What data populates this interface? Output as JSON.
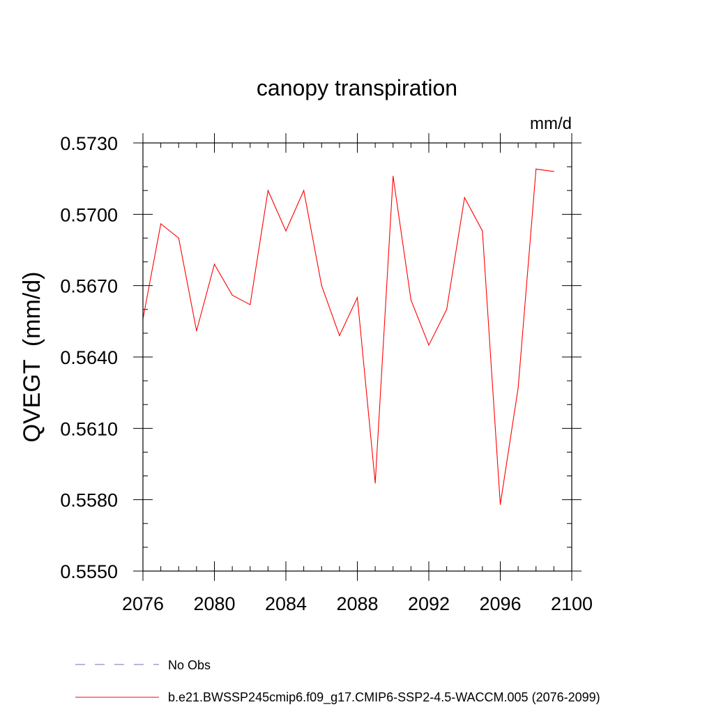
{
  "chart_data": {
    "type": "line",
    "title": "canopy transpiration",
    "units_label": "mm/d",
    "ylabel": "QVEGT  (mm/d)",
    "xlabel": "",
    "xlim": [
      2076,
      2100
    ],
    "ylim": [
      0.555,
      0.573
    ],
    "x_ticks": [
      2076,
      2080,
      2084,
      2088,
      2092,
      2096,
      2100
    ],
    "x_tick_labels": [
      "2076",
      "2080",
      "2084",
      "2088",
      "2092",
      "2096",
      "2100"
    ],
    "x_minor_step": 1,
    "y_ticks": [
      0.555,
      0.558,
      0.561,
      0.564,
      0.567,
      0.57,
      0.573
    ],
    "y_tick_labels": [
      "0.5550",
      "0.5580",
      "0.5610",
      "0.5640",
      "0.5670",
      "0.5700",
      "0.5730"
    ],
    "y_minor_step": 0.001,
    "grid": false,
    "legend_position": "bottom",
    "series": [
      {
        "name": "b.e21.BWSSP245cmip6.f09_g17.CMIP6-SSP2-4.5-WACCM.005 (2076-2099)",
        "color": "#ff0000",
        "style": "solid",
        "x": [
          2076,
          2077,
          2078,
          2079,
          2080,
          2081,
          2082,
          2083,
          2084,
          2085,
          2086,
          2087,
          2088,
          2089,
          2090,
          2091,
          2092,
          2093,
          2094,
          2095,
          2096,
          2097,
          2098,
          2099
        ],
        "values": [
          0.5656,
          0.5696,
          0.569,
          0.5651,
          0.5679,
          0.5666,
          0.5662,
          0.571,
          0.5693,
          0.571,
          0.567,
          0.5649,
          0.5665,
          0.5587,
          0.5716,
          0.5664,
          0.5645,
          0.566,
          0.5707,
          0.5693,
          0.5578,
          0.5627,
          0.5719,
          0.5718
        ]
      }
    ],
    "legend": [
      {
        "label": "No Obs",
        "color": "#7b68b8",
        "style": "dashed"
      },
      {
        "label": "b.e21.BWSSP245cmip6.f09_g17.CMIP6-SSP2-4.5-WACCM.005 (2076-2099)",
        "color": "#ff0000",
        "style": "solid"
      }
    ]
  }
}
